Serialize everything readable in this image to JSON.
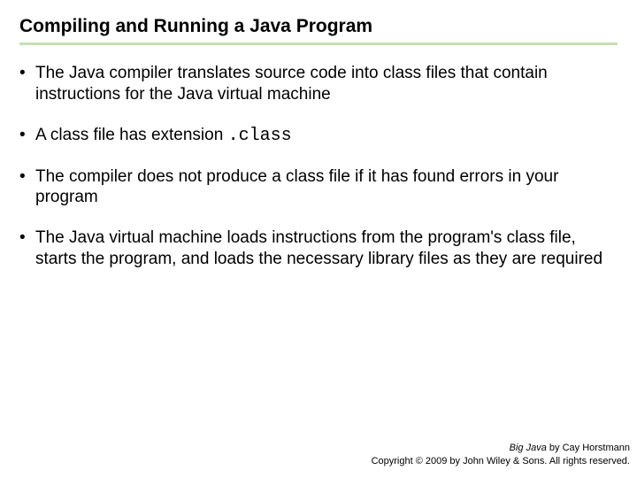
{
  "title": "Compiling and Running a Java Program",
  "bullets": [
    {
      "text": "The Java compiler translates source code into class files that contain instructions for the Java virtual machine"
    },
    {
      "prefix": "A class file has extension ",
      "code": ".class"
    },
    {
      "text": "The compiler does not produce a class file if it has found errors in your program"
    },
    {
      "text": "The Java virtual machine loads instructions from the program's class file, starts the program, and loads the necessary library files as they are required"
    }
  ],
  "footer": {
    "book": "Big Java",
    "by": " by Cay Horstmann",
    "copyright": "Copyright © 2009 by John Wiley & Sons.  All rights reserved."
  },
  "colors": {
    "underline": "#c5e0b4",
    "text": "#000000",
    "background": "#ffffff"
  }
}
